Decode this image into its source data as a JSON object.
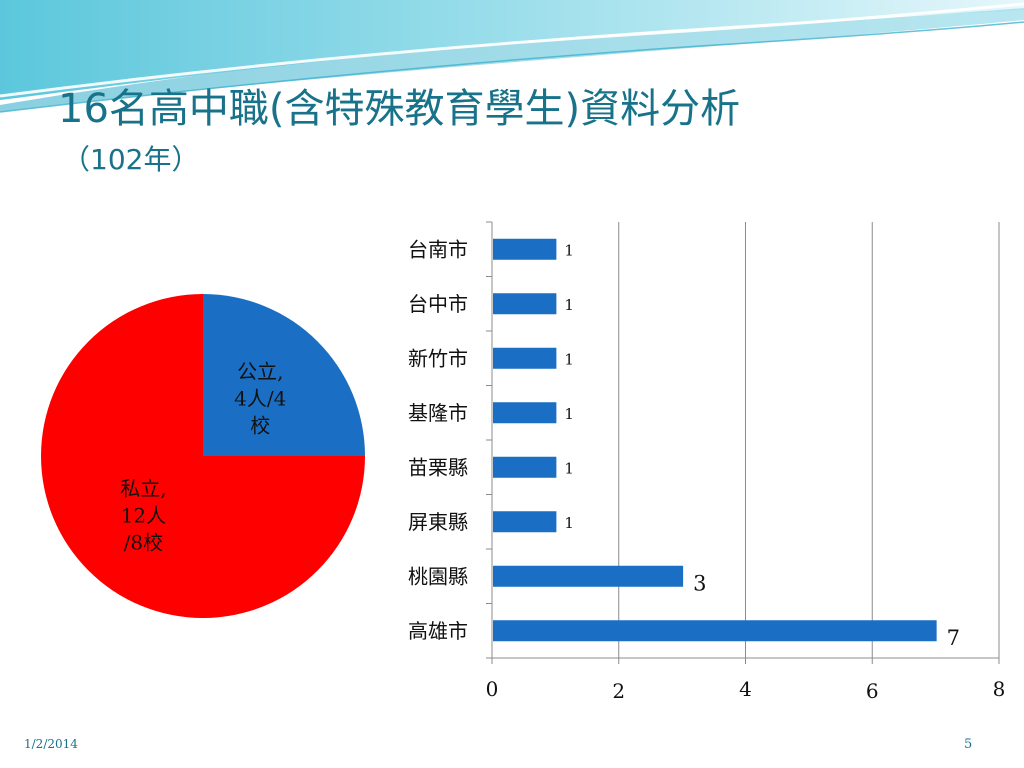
{
  "slide": {
    "title": "16名高中職(含特殊教育學生)資料分析",
    "subtitle": "（102年）",
    "date": "1/2/2014",
    "page_number": "5"
  },
  "colors": {
    "title": "#17728a",
    "public_slice": "#1a6fc4",
    "private_slice": "#ff0000",
    "bar": "#1a6fc4",
    "grid": "#8c8c8c"
  },
  "chart_data": [
    {
      "type": "pie",
      "slices": [
        {
          "label_lines": [
            "公立,",
            "4人/4",
            "校"
          ],
          "value": 4,
          "color": "#1a6fc4"
        },
        {
          "label_lines": [
            "私立,",
            "12人",
            "/8校"
          ],
          "value": 12,
          "color": "#ff0000"
        }
      ]
    },
    {
      "type": "bar",
      "orientation": "horizontal",
      "categories": [
        "台南市",
        "台中市",
        "新竹市",
        "基隆市",
        "苗栗縣",
        "屏東縣",
        "桃園縣",
        "高雄市"
      ],
      "values": [
        1,
        1,
        1,
        1,
        1,
        1,
        3,
        7
      ],
      "data_labels": [
        "1",
        "1",
        "1",
        "1",
        "1",
        "1",
        "3",
        "7"
      ],
      "xlim": [
        0,
        8
      ],
      "xticks": [
        "0",
        "2",
        "4",
        "6",
        "8"
      ],
      "grid": true,
      "legend": "none"
    }
  ]
}
